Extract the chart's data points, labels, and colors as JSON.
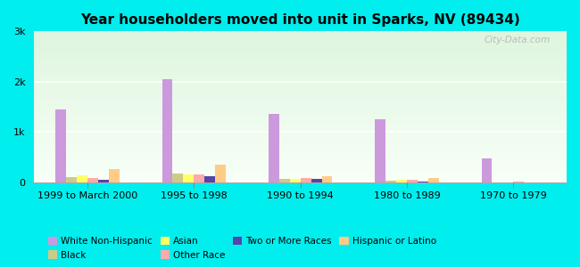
{
  "title": "Year householders moved into unit in Sparks, NV (89434)",
  "categories": [
    "1999 to March 2000",
    "1995 to 1998",
    "1990 to 1994",
    "1980 to 1989",
    "1970 to 1979"
  ],
  "races": [
    "White Non-Hispanic",
    "Black",
    "Asian",
    "Other Race",
    "Two or More Races",
    "Hispanic or Latino"
  ],
  "colors": {
    "White Non-Hispanic": "#cc99dd",
    "Black": "#cccc88",
    "Asian": "#ffff66",
    "Other Race": "#ffaaaa",
    "Two or More Races": "#5544aa",
    "Hispanic or Latino": "#ffcc88"
  },
  "values": {
    "White Non-Hispanic": [
      1450,
      2050,
      1350,
      1250,
      480
    ],
    "Black": [
      100,
      170,
      55,
      35,
      0
    ],
    "Asian": [
      140,
      155,
      60,
      45,
      0
    ],
    "Other Race": [
      80,
      155,
      80,
      40,
      10
    ],
    "Two or More Races": [
      40,
      110,
      65,
      10,
      0
    ],
    "Hispanic or Latino": [
      250,
      340,
      120,
      85,
      0
    ]
  },
  "ylim": [
    0,
    3000
  ],
  "yticks": [
    0,
    1000,
    2000,
    3000
  ],
  "ytick_labels": [
    "0",
    "1k",
    "2k",
    "3k"
  ],
  "bg_outer": "#00eeee",
  "watermark": "City-Data.com",
  "bar_width": 0.1,
  "legend_row1": [
    "White Non-Hispanic",
    "Black",
    "Asian",
    "Other Race"
  ],
  "legend_row2": [
    "Two or More Races",
    "Hispanic or Latino"
  ]
}
